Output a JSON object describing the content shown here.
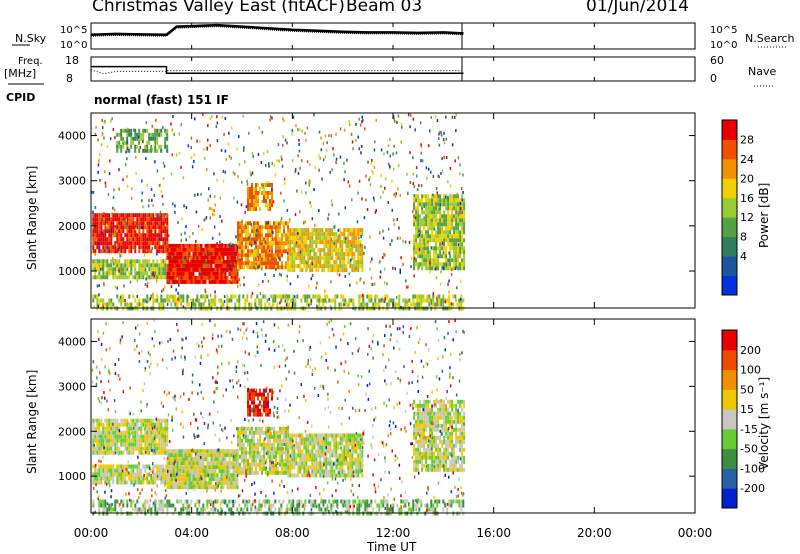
{
  "header": {
    "title": "Christmas Valley East (fitACF)",
    "beam": "Beam 03",
    "date": "01/Jun/2014"
  },
  "chart_data": [
    {
      "type": "line",
      "name": "noise",
      "left_label": "N.Sky",
      "right_label": "N.Search",
      "left_ticks": [
        "10^5",
        "10^0"
      ],
      "right_ticks": [
        "10^5",
        "10^0"
      ],
      "x_range_hours": [
        0,
        24
      ],
      "series": [
        {
          "x": [
            0.0,
            1.0,
            2.0,
            3.0,
            3.4,
            4.0,
            5.0,
            6.0,
            7.0,
            8.0,
            9.0,
            10.0,
            11.0,
            12.0,
            13.0,
            14.0,
            14.8
          ],
          "y_frac": [
            0.55,
            0.58,
            0.56,
            0.55,
            0.86,
            0.88,
            0.92,
            0.86,
            0.8,
            0.74,
            0.7,
            0.66,
            0.64,
            0.64,
            0.62,
            0.64,
            0.6
          ]
        }
      ]
    },
    {
      "type": "line",
      "name": "frequency",
      "left_label": "Freq.",
      "left_unit": "[MHz]",
      "left_ticks": [
        "18",
        "8"
      ],
      "right_ticks": [
        "60",
        "0"
      ],
      "right_label": "Nave",
      "cpid_label": "CPID",
      "series": [
        {
          "name": "freq",
          "x": [
            0.0,
            3.0,
            3.0,
            14.8
          ],
          "y": [
            14.0,
            14.0,
            11.2,
            11.2
          ]
        },
        {
          "name": "nave",
          "x": [
            0.0,
            0.5,
            1.0,
            3.0,
            3.0,
            14.8
          ],
          "y": [
            28,
            18,
            24,
            24,
            26,
            26
          ]
        }
      ]
    },
    {
      "type": "heatmap",
      "name": "power",
      "program": "normal (fast) 151 IF",
      "ylabel": "Slant Range [km]",
      "yticks": [
        1000,
        2000,
        3000,
        4000
      ],
      "ylim": [
        180,
        4500
      ],
      "colorbar_label": "Power [dB]",
      "colorbar_ticks": [
        "28",
        "24",
        "20",
        "16",
        "12",
        "8",
        "4"
      ],
      "colors": [
        "#0033dd",
        "#1a55a0",
        "#2f7f5f",
        "#55a040",
        "#99cc33",
        "#f0d000",
        "#f29000",
        "#f05000",
        "#e80000"
      ],
      "echo_regions": [
        {
          "x0": 0.05,
          "x1": 3.0,
          "r0": 1480,
          "r1": 2280,
          "level": 8,
          "density": 0.92
        },
        {
          "x0": 0.05,
          "x1": 3.0,
          "r0": 820,
          "r1": 1260,
          "level": 4,
          "density": 0.85
        },
        {
          "x0": 1.0,
          "x1": 3.0,
          "r0": 3650,
          "r1": 4150,
          "level": 3,
          "density": 0.6
        },
        {
          "x0": 3.0,
          "x1": 5.8,
          "r0": 780,
          "r1": 1600,
          "level": 8,
          "density": 0.95
        },
        {
          "x0": 5.8,
          "x1": 7.8,
          "r0": 1050,
          "r1": 2100,
          "level": 6,
          "density": 0.85
        },
        {
          "x0": 6.2,
          "x1": 7.2,
          "r0": 2350,
          "r1": 2950,
          "level": 6,
          "density": 0.8
        },
        {
          "x0": 7.8,
          "x1": 10.8,
          "r0": 1050,
          "r1": 1950,
          "level": 5,
          "density": 0.85
        },
        {
          "x0": 12.8,
          "x1": 14.8,
          "r0": 1100,
          "r1": 2700,
          "level": 4,
          "density": 0.85
        },
        {
          "x0": 0.05,
          "x1": 14.8,
          "r0": 180,
          "r1": 480,
          "level": 4,
          "density": 0.55
        }
      ]
    },
    {
      "type": "heatmap",
      "name": "velocity",
      "ylabel": "Slant Range [km]",
      "yticks": [
        1000,
        2000,
        3000,
        4000
      ],
      "ylim": [
        180,
        4500
      ],
      "colorbar_label": "Velocity [m s⁻¹]",
      "colorbar_ticks": [
        "200",
        "100",
        "50",
        "15",
        "-15",
        "-50",
        "-100",
        "-200"
      ],
      "colors": [
        "#0022cc",
        "#2a60a8",
        "#3a9040",
        "#66cc33",
        "#c8c8c0",
        "#f0c800",
        "#f09000",
        "#f04a00",
        "#e80000"
      ],
      "echo_regions": [
        {
          "x0": 0.05,
          "x1": 3.0,
          "r0": 1480,
          "r1": 2280,
          "level": 4,
          "density": 0.92
        },
        {
          "x0": 0.05,
          "x1": 3.0,
          "r0": 820,
          "r1": 1260,
          "level": 4,
          "density": 0.85
        },
        {
          "x0": 3.0,
          "x1": 5.8,
          "r0": 780,
          "r1": 1600,
          "level": 4,
          "density": 0.95
        },
        {
          "x0": 5.8,
          "x1": 7.8,
          "r0": 1050,
          "r1": 2100,
          "level": 4,
          "density": 0.85
        },
        {
          "x0": 6.2,
          "x1": 7.2,
          "r0": 2350,
          "r1": 2950,
          "level": 8,
          "density": 0.8
        },
        {
          "x0": 7.8,
          "x1": 10.8,
          "r0": 1050,
          "r1": 1950,
          "level": 4,
          "density": 0.85
        },
        {
          "x0": 12.8,
          "x1": 14.8,
          "r0": 1100,
          "r1": 2700,
          "level": 4,
          "density": 0.85
        },
        {
          "x0": 0.05,
          "x1": 14.8,
          "r0": 180,
          "r1": 480,
          "level": 3,
          "density": 0.55
        }
      ]
    }
  ],
  "x_axis": {
    "xlabel": "Time UT",
    "tick_labels": [
      "00:00",
      "04:00",
      "08:00",
      "12:00",
      "16:00",
      "20:00",
      "00:00"
    ]
  }
}
